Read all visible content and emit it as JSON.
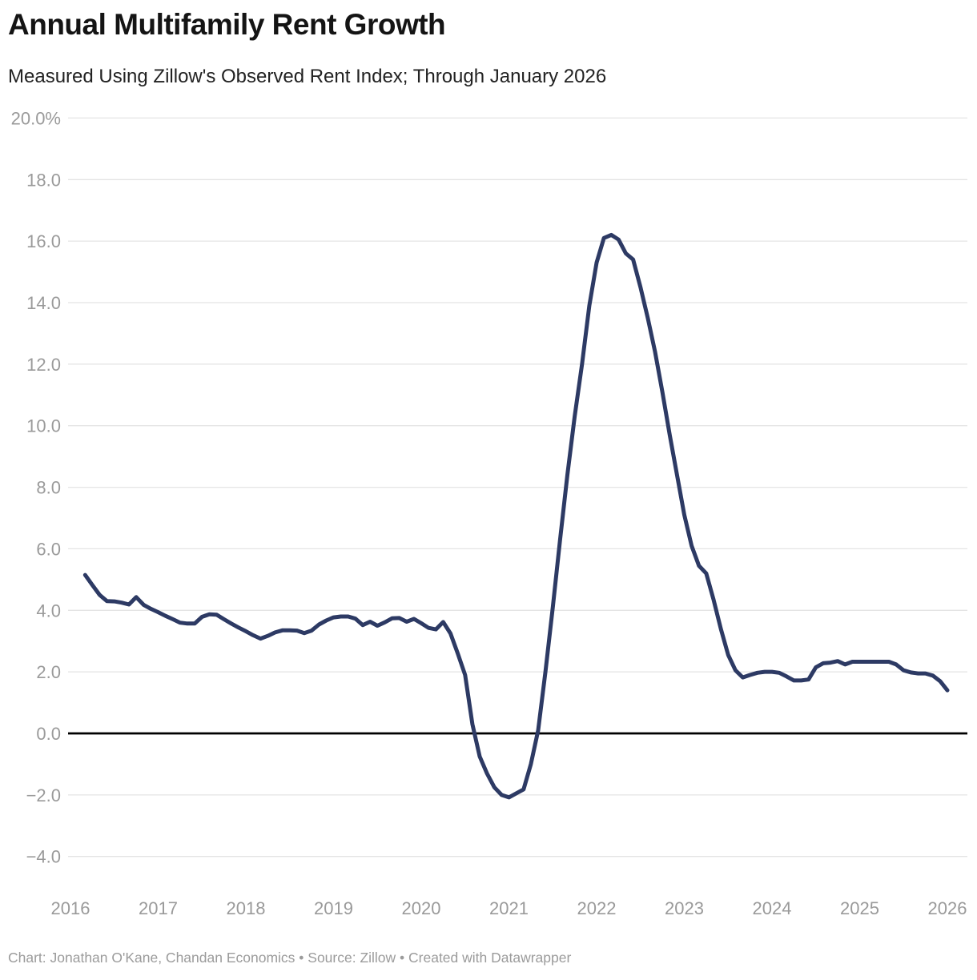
{
  "header": {
    "title": "Annual Multifamily Rent Growth",
    "subtitle": "Measured Using Zillow's Observed Rent Index; Through January 2026"
  },
  "footer": {
    "credit": "Chart: Jonathan O'Kane, Chandan Economics • Source: Zillow • Created with Datawrapper"
  },
  "colors": {
    "background": "#ffffff",
    "line": "#2d3a64",
    "grid": "#e4e4e4",
    "zero_line": "#000000",
    "axis_label": "#9a9a9a",
    "title": "#141414",
    "subtitle": "#222222",
    "footer_text": "#9b9b9b"
  },
  "chart_data": {
    "type": "line",
    "title": "Annual Multifamily Rent Growth",
    "subtitle": "Measured Using Zillow's Observed Rent Index; Through January 2026",
    "unit": "%",
    "grid": "horizontal",
    "legend": "none",
    "ylim": [
      -4.7,
      20.6
    ],
    "y_ticks": [
      {
        "value": 20,
        "label": "20.0%"
      },
      {
        "value": 18,
        "label": "18.0"
      },
      {
        "value": 16,
        "label": "16.0"
      },
      {
        "value": 14,
        "label": "14.0"
      },
      {
        "value": 12,
        "label": "12.0"
      },
      {
        "value": 10,
        "label": "10.0"
      },
      {
        "value": 8,
        "label": "8.0"
      },
      {
        "value": 6,
        "label": "6.0"
      },
      {
        "value": 4,
        "label": "4.0"
      },
      {
        "value": 2,
        "label": "2.0"
      },
      {
        "value": 0,
        "label": "0.0"
      },
      {
        "value": -2,
        "label": "−2.0"
      },
      {
        "value": -4,
        "label": "−4.0"
      }
    ],
    "x_ticks": [
      2016,
      2017,
      2018,
      2019,
      2020,
      2021,
      2022,
      2023,
      2024,
      2025,
      2026
    ],
    "series": [
      {
        "name": "Annual multifamily rent growth (ZORI year-over-year, %)",
        "frequency": "monthly",
        "start": "2016-03",
        "end": "2026-01",
        "values": [
          5.15,
          4.82,
          4.5,
          4.3,
          4.29,
          4.25,
          4.19,
          4.43,
          4.18,
          4.05,
          3.94,
          3.82,
          3.71,
          3.6,
          3.57,
          3.57,
          3.79,
          3.87,
          3.86,
          3.71,
          3.57,
          3.44,
          3.32,
          3.19,
          3.08,
          3.17,
          3.28,
          3.35,
          3.35,
          3.34,
          3.26,
          3.34,
          3.54,
          3.67,
          3.77,
          3.8,
          3.8,
          3.73,
          3.52,
          3.63,
          3.5,
          3.61,
          3.74,
          3.75,
          3.63,
          3.72,
          3.58,
          3.43,
          3.38,
          3.62,
          3.25,
          2.6,
          1.9,
          0.3,
          -0.75,
          -1.3,
          -1.75,
          -2.0,
          -2.08,
          -1.95,
          -1.82,
          -1.0,
          0.1,
          2.0,
          4.1,
          6.3,
          8.4,
          10.3,
          12.0,
          13.9,
          15.3,
          16.1,
          16.2,
          16.05,
          15.6,
          15.4,
          14.5,
          13.5,
          12.4,
          11.1,
          9.7,
          8.4,
          7.1,
          6.1,
          5.45,
          5.2,
          4.35,
          3.4,
          2.55,
          2.05,
          1.82,
          1.9,
          1.97,
          2.0,
          2.0,
          1.97,
          1.85,
          1.72,
          1.72,
          1.75,
          2.15,
          2.28,
          2.3,
          2.35,
          2.24,
          2.33,
          2.33,
          2.33,
          2.33,
          2.33,
          2.33,
          2.24,
          2.05,
          1.98,
          1.95,
          1.95,
          1.88,
          1.7,
          1.4
        ]
      }
    ]
  }
}
